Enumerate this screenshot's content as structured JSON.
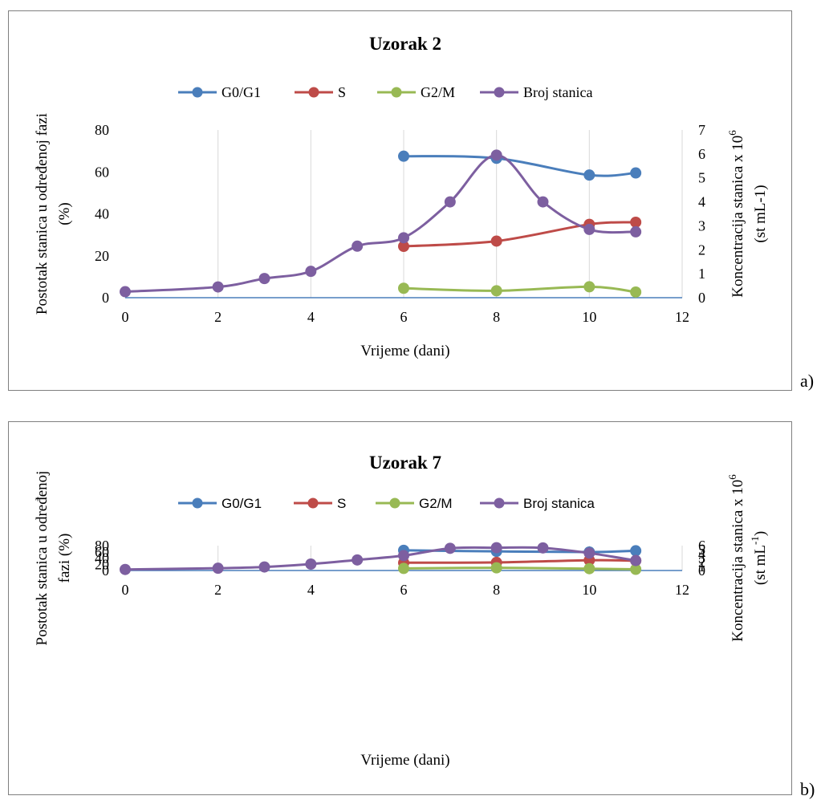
{
  "chart_data": [
    {
      "type": "line",
      "panel_label": "a)",
      "title": "Uzorak 2",
      "xlabel": "Vrijeme (dani)",
      "ylabel_lines": [
        "Postotak stanica u određenoj fazi",
        "(%)"
      ],
      "y2label_lines": [
        "Koncentracija stanica x 10",
        "(st mL-1)"
      ],
      "y2label_sup": "6",
      "y2label_sup2": "",
      "xlim": [
        0,
        12
      ],
      "xticks": [
        "0",
        "2",
        "4",
        "6",
        "8",
        "10",
        "12"
      ],
      "ylim": [
        0,
        80
      ],
      "yticks": [
        "0",
        "20",
        "40",
        "60",
        "80"
      ],
      "y2lim": [
        0,
        7
      ],
      "y2ticks": [
        "0",
        "1",
        "2",
        "3",
        "4",
        "5",
        "6",
        "7"
      ],
      "grid": "vertical",
      "legend_position": "top",
      "legend_font": "serif",
      "series": [
        {
          "name": "G0/G1",
          "color": "#4a7ebb",
          "axis": "left",
          "x": [
            6,
            8,
            10,
            11
          ],
          "values": [
            67.5,
            66.5,
            58.5,
            59.5
          ]
        },
        {
          "name": "S",
          "color": "#be4b48",
          "axis": "left",
          "x": [
            6,
            8,
            10,
            11
          ],
          "values": [
            24.5,
            27,
            35,
            36
          ]
        },
        {
          "name": "G2/M",
          "color": "#98b954",
          "axis": "left",
          "x": [
            6,
            8,
            10,
            11
          ],
          "values": [
            4.5,
            3.3,
            5.2,
            2.7
          ]
        },
        {
          "name": "Broj stanica",
          "color": "#7d5fa0",
          "axis": "right",
          "x": [
            0,
            2,
            3,
            4,
            5,
            6,
            7,
            8,
            9,
            10,
            11
          ],
          "values": [
            0.25,
            0.45,
            0.8,
            1.1,
            2.15,
            2.5,
            4.0,
            5.95,
            4.0,
            2.85,
            2.75
          ]
        }
      ]
    },
    {
      "type": "line",
      "panel_label": "b)",
      "title": "Uzorak 7",
      "xlabel": "Vrijeme (dani)",
      "ylabel_lines": [
        "Postotak stanica u određenoj",
        "fazi (%)"
      ],
      "y2label_lines": [
        "Koncentracija stanica x 10",
        "(st mL",
        ")"
      ],
      "y2label_sup": "6",
      "y2label_sup2": "-1",
      "xlim": [
        0,
        12
      ],
      "xticks": [
        "0",
        "2",
        "4",
        "6",
        "8",
        "10",
        "12"
      ],
      "ylim": [
        0,
        80
      ],
      "yticks": [
        "0",
        "20",
        "40",
        "60",
        "80"
      ],
      "y2lim": [
        0,
        6
      ],
      "y2ticks": [
        "0",
        "1",
        "2",
        "3",
        "4",
        "5",
        "6"
      ],
      "grid": "vertical",
      "legend_position": "top",
      "legend_font": "sans",
      "series": [
        {
          "name": "G0/G1",
          "color": "#4a7ebb",
          "axis": "left",
          "x": [
            6,
            8,
            10,
            11
          ],
          "values": [
            65,
            61.5,
            59.5,
            63.5
          ]
        },
        {
          "name": "S",
          "color": "#be4b48",
          "axis": "left",
          "x": [
            6,
            8,
            10,
            11
          ],
          "values": [
            25,
            26,
            33,
            31.5
          ]
        },
        {
          "name": "G2/M",
          "color": "#98b954",
          "axis": "left",
          "x": [
            6,
            8,
            10,
            11
          ],
          "values": [
            6.8,
            8.7,
            5.9,
            3.9
          ]
        },
        {
          "name": "Broj stanica",
          "color": "#7d5fa0",
          "axis": "right",
          "x": [
            0,
            2,
            3,
            4,
            5,
            6,
            7,
            8,
            9,
            10,
            11
          ],
          "values": [
            0.25,
            0.55,
            0.85,
            1.55,
            2.55,
            3.6,
            5.35,
            5.5,
            5.45,
            4.2,
            2.4
          ]
        }
      ]
    }
  ]
}
